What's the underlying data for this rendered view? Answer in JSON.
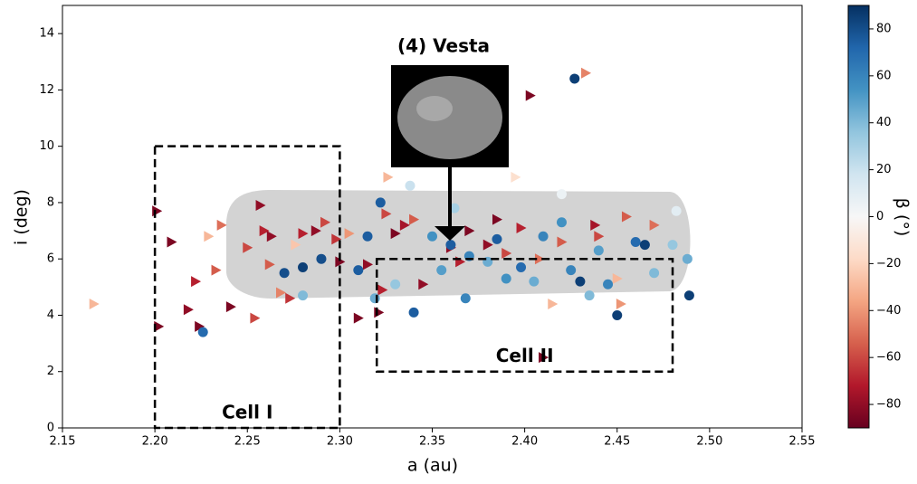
{
  "chart_data": {
    "type": "scatter",
    "xlabel": "a (au)",
    "ylabel": "i (deg)",
    "xlim": [
      2.15,
      2.55
    ],
    "ylim": [
      0,
      15
    ],
    "xticks": [
      {
        "value": 2.15,
        "label": "2.15"
      },
      {
        "value": 2.2,
        "label": "2.20"
      },
      {
        "value": 2.25,
        "label": "2.25"
      },
      {
        "value": 2.3,
        "label": "2.30"
      },
      {
        "value": 2.35,
        "label": "2.35"
      },
      {
        "value": 2.4,
        "label": "2.40"
      },
      {
        "value": 2.45,
        "label": "2.45"
      },
      {
        "value": 2.5,
        "label": "2.50"
      },
      {
        "value": 2.55,
        "label": "2.55"
      }
    ],
    "yticks": [
      0,
      2,
      4,
      6,
      8,
      10,
      12,
      14
    ],
    "annotation": "(4) Vesta",
    "regions": [
      {
        "label": "Cell I",
        "x": [
          2.2,
          2.3
        ],
        "y": [
          0,
          10
        ]
      },
      {
        "label": "Cell II",
        "x": [
          2.32,
          2.48
        ],
        "y": [
          2,
          6
        ]
      }
    ],
    "colorbar": {
      "label": "β (°)",
      "lim": [
        -90,
        90
      ],
      "ticks": [
        {
          "value": -80,
          "label": "−80"
        },
        {
          "value": -60,
          "label": "−60"
        },
        {
          "value": -40,
          "label": "−40"
        },
        {
          "value": -20,
          "label": "−20"
        },
        0,
        20,
        40,
        60,
        80
      ],
      "colormap": [
        "#67001f",
        "#b2182b",
        "#d6604d",
        "#f4a582",
        "#fddbc7",
        "#f7f7f7",
        "#d1e5f0",
        "#92c5de",
        "#4393c3",
        "#2166ac",
        "#053061"
      ]
    },
    "series": [
      {
        "marker": "triangle",
        "x": [
          2.167,
          2.201,
          2.202,
          2.209,
          2.218,
          2.224,
          2.222,
          2.229,
          2.233,
          2.236,
          2.241,
          2.25,
          2.254,
          2.257,
          2.259,
          2.262,
          2.263,
          2.268,
          2.273,
          2.276,
          2.28,
          2.287,
          2.292,
          2.298,
          2.3,
          2.305,
          2.31,
          2.315,
          2.321,
          2.323,
          2.325,
          2.326,
          2.33,
          2.335,
          2.34,
          2.345,
          2.36,
          2.365,
          2.37,
          2.38,
          2.385,
          2.39,
          2.395,
          2.398,
          2.403,
          2.408,
          2.41,
          2.415,
          2.42,
          2.433,
          2.438,
          2.44,
          2.45,
          2.452,
          2.455,
          2.47
        ],
        "values": [
          4.4,
          7.7,
          3.6,
          6.6,
          4.2,
          3.6,
          5.2,
          6.8,
          5.6,
          7.2,
          4.3,
          6.4,
          3.9,
          7.9,
          7.0,
          5.8,
          6.8,
          4.8,
          4.6,
          6.5,
          6.9,
          7.0,
          7.3,
          6.7,
          5.9,
          6.9,
          3.9,
          5.8,
          4.1,
          4.9,
          7.6,
          8.9,
          6.9,
          7.2,
          7.4,
          5.1,
          6.4,
          5.9,
          7.0,
          6.5,
          7.4,
          6.2,
          8.9,
          7.1,
          11.8,
          6.0,
          2.5,
          4.4,
          6.6,
          12.6,
          7.2,
          6.8,
          5.3,
          4.4,
          7.5,
          7.2
        ],
        "c": [
          -30,
          -85,
          -85,
          -85,
          -80,
          -85,
          -70,
          -30,
          -55,
          -50,
          -85,
          -60,
          -60,
          -80,
          -70,
          -55,
          -80,
          -45,
          -65,
          -25,
          -70,
          -80,
          -60,
          -65,
          -85,
          -40,
          -85,
          -80,
          -85,
          -70,
          -60,
          -30,
          -85,
          -75,
          -55,
          -80,
          -80,
          -70,
          -85,
          -80,
          -85,
          -60,
          -15,
          -70,
          -85,
          -50,
          -85,
          -30,
          -55,
          -45,
          -75,
          -60,
          -30,
          -40,
          -55,
          -50
        ]
      },
      {
        "marker": "circle",
        "x": [
          2.226,
          2.27,
          2.28,
          2.28,
          2.29,
          2.31,
          2.315,
          2.319,
          2.322,
          2.33,
          2.338,
          2.34,
          2.35,
          2.355,
          2.36,
          2.362,
          2.368,
          2.37,
          2.38,
          2.385,
          2.39,
          2.398,
          2.405,
          2.41,
          2.42,
          2.425,
          2.427,
          2.43,
          2.435,
          2.44,
          2.445,
          2.45,
          2.46,
          2.465,
          2.47,
          2.48,
          2.482,
          2.488,
          2.489,
          2.42
        ],
        "values": [
          3.4,
          5.5,
          4.7,
          5.7,
          6.0,
          5.6,
          6.8,
          4.6,
          8.0,
          5.1,
          8.6,
          4.1,
          6.8,
          5.6,
          6.5,
          7.8,
          4.6,
          6.1,
          5.9,
          6.7,
          5.3,
          5.7,
          5.2,
          6.8,
          7.3,
          5.6,
          12.4,
          5.2,
          4.7,
          6.3,
          5.1,
          4.0,
          6.6,
          6.5,
          5.5,
          6.5,
          7.7,
          6.0,
          4.7,
          8.3
        ],
        "c": [
          70,
          80,
          40,
          85,
          80,
          75,
          75,
          45,
          75,
          35,
          20,
          75,
          55,
          50,
          75,
          30,
          60,
          60,
          45,
          75,
          55,
          70,
          45,
          60,
          55,
          60,
          85,
          85,
          40,
          50,
          60,
          85,
          70,
          85,
          40,
          35,
          10,
          45,
          85,
          5
        ]
      }
    ]
  }
}
